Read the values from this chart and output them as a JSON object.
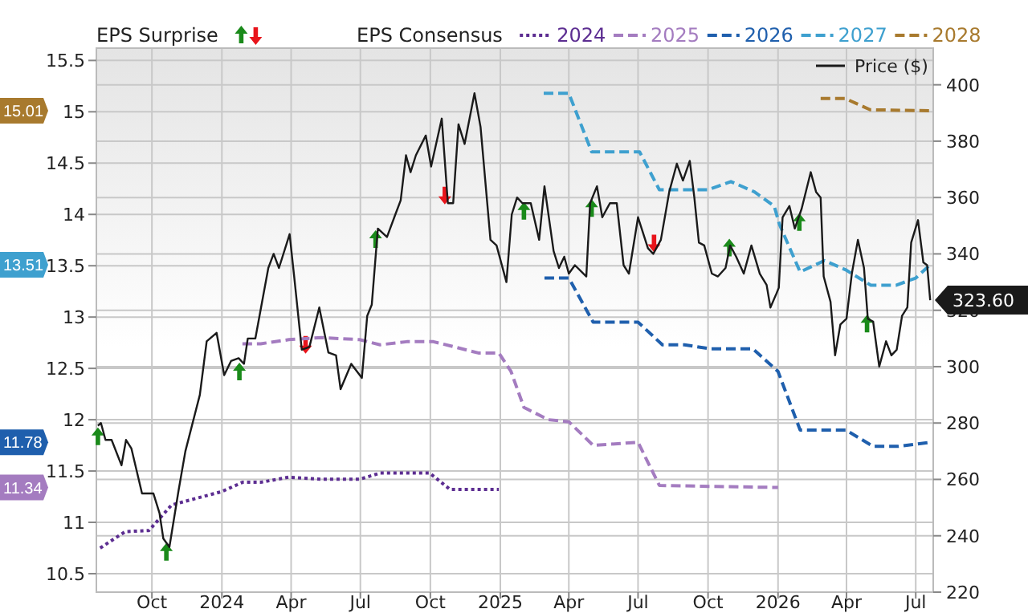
{
  "chart_data": {
    "type": "line",
    "legend": "top",
    "annotations": [
      "EPS Surprise",
      "15.01",
      "13.51",
      "11.78",
      "11.34"
    ],
    "legend_title": "EPS Consensus",
    "grid": true,
    "xlim": [
      "2023-07-20",
      "2026-07-24"
    ],
    "xticks": [
      {
        "value": "2023-10-01",
        "label": "Oct"
      },
      {
        "value": "2024-01-01",
        "label": "2024"
      },
      {
        "value": "2024-04-01",
        "label": "Apr"
      },
      {
        "value": "2024-07-01",
        "label": "Jul"
      },
      {
        "value": "2024-10-01",
        "label": "Oct"
      },
      {
        "value": "2025-01-01",
        "label": "2025"
      },
      {
        "value": "2025-04-01",
        "label": "Apr"
      },
      {
        "value": "2025-07-01",
        "label": "Jul"
      },
      {
        "value": "2025-10-01",
        "label": "Oct"
      },
      {
        "value": "2026-01-01",
        "label": "2026"
      },
      {
        "value": "2026-04-01",
        "label": "Apr"
      },
      {
        "value": "2026-07-01",
        "label": "Jul"
      }
    ],
    "ylim": [
      10.32,
      15.62
    ],
    "yticks": [
      10.5,
      11,
      11.5,
      12,
      12.5,
      13,
      13.5,
      14,
      14.5,
      15,
      15.5
    ],
    "y2lim": [
      220,
      413
    ],
    "y2ticks": [
      220,
      240,
      260,
      280,
      300,
      320,
      340,
      360,
      380,
      400
    ],
    "series": [
      {
        "type": "scatter",
        "axis": "y2",
        "marker": "triangle",
        "color": "#1a8a1a",
        "x": [
          "2023-07-22",
          "2023-10-20",
          "2024-01-24",
          "2024-07-21",
          "2025-02-01",
          "2025-05-01",
          "2025-10-29",
          "2026-01-29",
          "2026-04-28"
        ],
        "values": [
          275,
          234,
          298,
          345,
          355,
          356,
          342,
          351,
          315
        ]
      },
      {
        "type": "scatter",
        "axis": "y2",
        "marker": "triangle-down",
        "color": "#e8141b",
        "x": [
          "2024-04-20",
          "2024-10-20",
          "2025-07-22"
        ],
        "values": [
          308,
          361,
          344
        ]
      },
      {
        "name": "2024",
        "type": "line",
        "line_style": "dotted",
        "color": "#5c2d91",
        "x": [
          "2023-07-25",
          "2023-08-27",
          "2023-09-27",
          "2023-10-27",
          "2024-01-01",
          "2024-01-28",
          "2024-02-21",
          "2024-03-29",
          "2024-05-11",
          "2024-06-30",
          "2024-07-27",
          "2024-09-30",
          "2024-10-27",
          "2024-12-30"
        ],
        "values": [
          10.75,
          10.91,
          10.92,
          11.17,
          11.3,
          11.39,
          11.39,
          11.44,
          11.42,
          11.42,
          11.48,
          11.48,
          11.32,
          11.32
        ]
      },
      {
        "name": "2025",
        "type": "line",
        "line_style": "dashed",
        "color": "#a47cc0",
        "x": [
          "2024-01-28",
          "2024-02-21",
          "2024-03-29",
          "2024-05-11",
          "2024-06-30",
          "2024-07-27",
          "2024-08-31",
          "2024-10-05",
          "2024-10-27",
          "2024-12-03",
          "2024-12-30",
          "2025-01-15",
          "2025-02-01",
          "2025-03-05",
          "2025-04-01",
          "2025-05-03",
          "2025-07-01",
          "2025-07-29",
          "2025-10-05",
          "2026-01-01"
        ],
        "values": [
          12.74,
          12.74,
          12.78,
          12.8,
          12.78,
          12.73,
          12.76,
          12.76,
          12.72,
          12.65,
          12.65,
          12.47,
          12.12,
          12.0,
          11.98,
          11.75,
          11.78,
          11.36,
          11.35,
          11.34
        ]
      },
      {
        "name": "2026",
        "type": "line",
        "line_style": "dashed",
        "color": "#1f5fad",
        "x": [
          "2025-02-28",
          "2025-04-01",
          "2025-05-03",
          "2025-07-01",
          "2025-08-02",
          "2025-08-31",
          "2025-10-05",
          "2025-11-29",
          "2026-01-01",
          "2026-01-30",
          "2026-03-31",
          "2026-05-06",
          "2026-06-07",
          "2026-07-20"
        ],
        "values": [
          13.38,
          13.38,
          12.95,
          12.95,
          12.73,
          12.73,
          12.69,
          12.69,
          12.47,
          11.9,
          11.9,
          11.74,
          11.74,
          11.78
        ]
      },
      {
        "name": "2027",
        "type": "line",
        "line_style": "dashed",
        "color": "#3ea0cf",
        "x": [
          "2025-02-27",
          "2025-04-01",
          "2025-05-01",
          "2025-07-03",
          "2025-07-29",
          "2025-10-01",
          "2025-10-31",
          "2025-12-01",
          "2025-12-27",
          "2026-01-03",
          "2026-01-30",
          "2026-03-03",
          "2026-03-31",
          "2026-05-03",
          "2026-06-05",
          "2026-07-01",
          "2026-07-20"
        ],
        "values": [
          15.18,
          15.18,
          14.61,
          14.61,
          14.24,
          14.24,
          14.32,
          14.22,
          14.08,
          13.9,
          13.44,
          13.55,
          13.46,
          13.31,
          13.31,
          13.38,
          13.51
        ]
      },
      {
        "name": "2028",
        "type": "line",
        "line_style": "dashed",
        "color": "#a87a2e",
        "x": [
          "2026-02-26",
          "2026-03-30",
          "2026-05-02",
          "2026-07-20"
        ],
        "values": [
          15.13,
          15.13,
          15.02,
          15.01
        ]
      },
      {
        "name": "Price ($)",
        "type": "line",
        "axis": "y2",
        "line_style": "solid",
        "color": "#1a1a1a",
        "x": [
          "2023-07-22",
          "2023-07-26",
          "2023-08-01",
          "2023-08-09",
          "2023-08-22",
          "2023-08-28",
          "2023-09-04",
          "2023-09-18",
          "2023-10-03",
          "2023-10-11",
          "2023-10-16",
          "2023-10-24",
          "2023-11-05",
          "2023-11-14",
          "2023-12-03",
          "2023-12-12",
          "2023-12-25",
          "2024-01-04",
          "2024-01-13",
          "2024-01-23",
          "2024-01-30",
          "2024-02-04",
          "2024-02-14",
          "2024-03-02",
          "2024-03-09",
          "2024-03-16",
          "2024-03-30",
          "2024-04-05",
          "2024-04-15",
          "2024-04-25",
          "2024-05-08",
          "2024-05-20",
          "2024-05-30",
          "2024-06-05",
          "2024-06-19",
          "2024-07-03",
          "2024-07-10",
          "2024-07-16",
          "2024-07-24",
          "2024-08-05",
          "2024-08-16",
          "2024-08-23",
          "2024-08-30",
          "2024-09-05",
          "2024-09-12",
          "2024-09-25",
          "2024-10-02",
          "2024-10-16",
          "2024-10-24",
          "2024-10-31",
          "2024-11-07",
          "2024-11-15",
          "2024-11-28",
          "2024-12-06",
          "2024-12-19",
          "2024-12-27",
          "2025-01-09",
          "2025-01-16",
          "2025-01-23",
          "2025-01-30",
          "2025-02-10",
          "2025-02-21",
          "2025-02-28",
          "2025-03-12",
          "2025-03-19",
          "2025-03-26",
          "2025-04-01",
          "2025-04-09",
          "2025-04-24",
          "2025-04-29",
          "2025-05-08",
          "2025-05-15",
          "2025-05-25",
          "2025-06-03",
          "2025-06-12",
          "2025-06-19",
          "2025-07-01",
          "2025-07-14",
          "2025-07-21",
          "2025-07-31",
          "2025-08-11",
          "2025-08-21",
          "2025-08-29",
          "2025-09-07",
          "2025-09-13",
          "2025-09-19",
          "2025-09-26",
          "2025-10-06",
          "2025-10-14",
          "2025-10-24",
          "2025-10-30",
          "2025-11-07",
          "2025-11-17",
          "2025-11-27",
          "2025-12-08",
          "2025-12-17",
          "2025-12-22",
          "2025-12-30",
          "2026-01-02",
          "2026-01-07",
          "2026-01-16",
          "2026-01-23",
          "2026-02-01",
          "2026-02-13",
          "2026-02-20",
          "2026-02-26",
          "2026-03-02",
          "2026-03-11",
          "2026-03-17",
          "2026-03-24",
          "2026-04-01",
          "2026-04-08",
          "2026-04-16",
          "2026-04-24",
          "2026-04-29",
          "2026-05-06",
          "2026-05-14",
          "2026-05-23",
          "2026-05-30",
          "2026-06-06",
          "2026-06-13",
          "2026-06-20",
          "2026-06-25",
          "2026-07-04",
          "2026-07-11",
          "2026-07-16",
          "2026-07-20"
        ],
        "values": [
          279,
          280,
          274,
          274,
          265,
          274,
          271,
          255,
          255,
          248,
          239,
          236,
          256,
          270,
          290,
          309,
          312,
          297,
          302,
          303,
          301,
          310,
          310,
          335,
          340,
          335,
          347,
          332,
          306,
          307,
          321,
          305,
          304,
          292,
          301,
          296,
          318,
          322,
          349,
          346,
          354,
          359,
          375,
          369,
          375,
          382,
          371,
          388,
          358,
          358,
          386,
          379,
          397,
          385,
          345,
          343,
          330,
          354,
          360,
          358,
          358,
          345,
          364,
          341,
          335,
          339,
          333,
          336,
          332,
          358,
          364,
          353,
          358,
          358,
          336,
          333,
          353,
          342,
          340,
          345,
          362,
          372,
          366,
          373,
          360,
          344,
          343,
          333,
          332,
          335,
          343,
          339,
          333,
          343,
          333,
          329,
          321,
          326,
          328,
          353,
          357,
          349,
          356,
          369,
          362,
          360,
          332,
          323,
          304,
          315,
          317,
          333,
          345,
          335,
          317,
          316,
          300,
          309,
          304,
          306,
          318,
          321,
          344,
          352,
          337,
          336,
          323.6
        ],
        "value_labels": [
          null,
          null,
          null,
          null,
          null,
          null,
          null,
          null,
          null,
          null,
          null,
          null,
          null,
          null,
          null,
          null,
          null,
          null,
          null,
          null,
          null,
          null,
          null,
          null,
          null,
          null,
          null,
          null,
          null,
          null,
          null,
          null,
          null,
          null,
          null,
          null,
          null,
          null,
          null,
          null,
          null,
          null,
          null,
          null,
          null,
          null,
          null,
          null,
          null,
          null,
          null,
          null,
          null,
          null,
          null,
          null,
          null,
          null,
          null,
          null,
          null,
          null,
          null,
          null,
          null,
          null,
          null,
          null,
          null,
          null,
          null,
          null,
          null,
          null,
          null,
          null,
          null,
          null,
          null,
          null,
          null,
          null,
          null,
          null,
          null,
          null,
          null,
          null,
          null,
          null,
          null,
          null,
          null,
          null,
          null,
          null,
          null,
          null,
          null,
          null,
          null,
          null,
          null,
          null,
          null,
          null,
          null,
          null,
          null,
          null,
          null,
          null,
          null,
          null,
          null,
          null,
          null,
          null,
          null,
          null,
          null,
          null,
          null,
          null,
          null,
          null,
          "323.60"
        ]
      }
    ]
  }
}
